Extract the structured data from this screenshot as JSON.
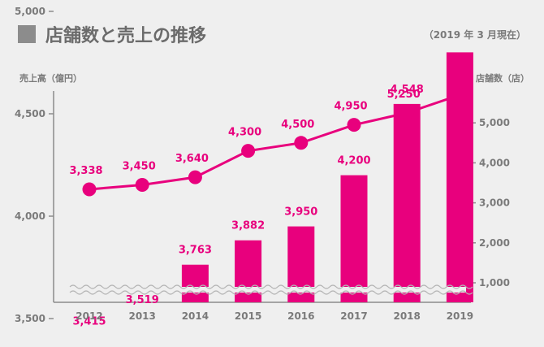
{
  "header": {
    "title": "店舗数と売上の推移",
    "as_of": "（2019 年 3 月現在）"
  },
  "chart_data": {
    "type": "bar+line",
    "categories": [
      "2012",
      "2013",
      "2014",
      "2015",
      "2016",
      "2017",
      "2018",
      "2019"
    ],
    "left_axis_label": "売上高（億円）",
    "right_axis_label": "店舗数（店）",
    "left_axis": {
      "ticks": [
        3500,
        4000,
        4500,
        5000
      ],
      "tick_labels": [
        "3,500",
        "4,000",
        "4,500",
        "5,000"
      ],
      "broken": true
    },
    "right_axis": {
      "ticks": [
        1000,
        2000,
        3000,
        4000,
        5000
      ],
      "tick_labels": [
        "1,000",
        "2,000",
        "3,000",
        "4,000",
        "5,000"
      ]
    },
    "sales": {
      "axis": "left",
      "values": [
        3415,
        3519,
        3763,
        3882,
        3950,
        4200,
        4548,
        4800
      ],
      "labels": [
        "3,415",
        "3,519",
        "3,763",
        "3,882",
        "3,950",
        "4,200",
        "4,548",
        ""
      ]
    },
    "stores": {
      "axis": "right",
      "values": [
        3338,
        3450,
        3640,
        4300,
        4500,
        4950,
        5250,
        5700
      ],
      "labels": [
        "3,338",
        "3,450",
        "3,640",
        "4,300",
        "4,500",
        "4,950",
        "5,250",
        ""
      ]
    },
    "colors": {
      "accent": "#e8007d",
      "axis": "#8c8c8c",
      "label": "#7a7a7a",
      "background": "#efefef"
    }
  }
}
